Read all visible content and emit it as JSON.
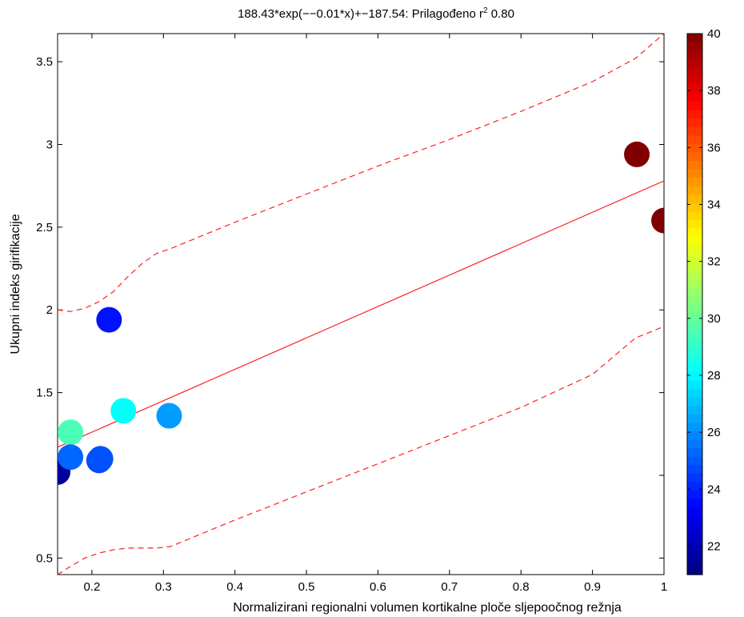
{
  "chart_data": {
    "type": "scatter",
    "title_main": "188.43*exp(−−0.01*x)+−187.54: Prilagođeno r",
    "title_sup": "2",
    "title_tail": "  0.80",
    "xlabel": "Normalizirani regionalni volumen kortikalne ploče sljepoočnog režnja",
    "ylabel": "Ukupni indeks girifikacije",
    "xlim": [
      0.152,
      1.0
    ],
    "ylim": [
      0.4,
      3.67
    ],
    "xticks": [
      0.2,
      0.3,
      0.4,
      0.5,
      0.6,
      0.7,
      0.8,
      0.9,
      1
    ],
    "xtick_labels": [
      "0.2",
      "0.3",
      "0.4",
      "0.5",
      "0.6",
      "0.7",
      "0.8",
      "0.9",
      "1"
    ],
    "yticks": [
      0.5,
      1.0,
      1.5,
      2.0,
      2.5,
      3.0,
      3.5
    ],
    "ytick_labels": [
      "0.5",
      "",
      "1.5",
      "2",
      "2.5",
      "3",
      "3.5"
    ],
    "grid": false,
    "points": [
      {
        "x": 0.152,
        "y": 1.02,
        "c": 21.5
      },
      {
        "x": 0.17,
        "y": 1.26,
        "c": 29.5
      },
      {
        "x": 0.17,
        "y": 1.11,
        "c": 25.3
      },
      {
        "x": 0.21,
        "y": 1.09,
        "c": 24.7
      },
      {
        "x": 0.212,
        "y": 1.1,
        "c": 24.9
      },
      {
        "x": 0.224,
        "y": 1.94,
        "c": 23.7
      },
      {
        "x": 0.244,
        "y": 1.39,
        "c": 28.2
      },
      {
        "x": 0.308,
        "y": 1.36,
        "c": 26.3
      },
      {
        "x": 0.962,
        "y": 2.94,
        "c": 40.0
      },
      {
        "x": 1.0,
        "y": 2.54,
        "c": 40.0
      }
    ],
    "fit_line": {
      "x": [
        0.152,
        1.0
      ],
      "y": [
        1.17,
        2.78
      ],
      "color": "#ff2020"
    },
    "ci_upper": {
      "x": [
        0.152,
        0.17,
        0.19,
        0.21,
        0.23,
        0.25,
        0.27,
        0.29,
        0.31,
        0.4,
        0.5,
        0.6,
        0.7,
        0.8,
        0.9,
        0.96,
        1.0
      ],
      "y": [
        2.0,
        1.99,
        2.01,
        2.05,
        2.11,
        2.2,
        2.28,
        2.34,
        2.37,
        2.53,
        2.7,
        2.87,
        3.03,
        3.2,
        3.38,
        3.52,
        3.67
      ]
    },
    "ci_lower": {
      "x": [
        0.152,
        0.17,
        0.19,
        0.21,
        0.23,
        0.25,
        0.27,
        0.29,
        0.31,
        0.4,
        0.5,
        0.6,
        0.7,
        0.8,
        0.9,
        0.96,
        1.0
      ],
      "y": [
        0.4,
        0.45,
        0.5,
        0.53,
        0.55,
        0.56,
        0.56,
        0.56,
        0.57,
        0.73,
        0.9,
        1.07,
        1.24,
        1.41,
        1.61,
        1.83,
        1.9
      ]
    },
    "colorbar": {
      "clim": [
        21,
        40
      ],
      "ticks": [
        22,
        24,
        26,
        28,
        30,
        32,
        34,
        36,
        38,
        40
      ],
      "tick_labels": [
        "22",
        "24",
        "26",
        "28",
        "30",
        "32",
        "34",
        "36",
        "38",
        "40"
      ],
      "colormap": "jet"
    }
  }
}
